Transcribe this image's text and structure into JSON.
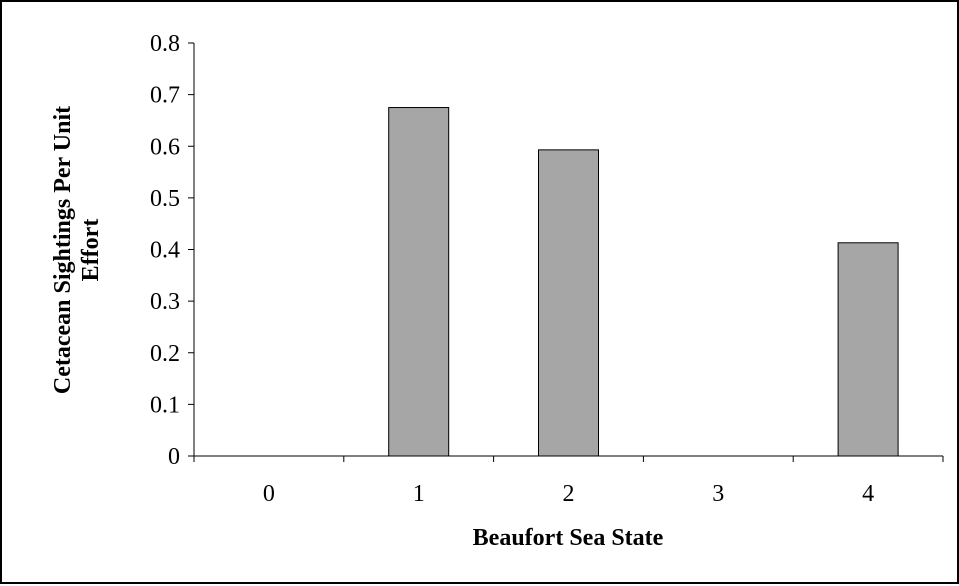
{
  "chart_data": {
    "type": "bar",
    "categories": [
      "0",
      "1",
      "2",
      "3",
      "4"
    ],
    "values": [
      0,
      0.675,
      0.593,
      0,
      0.413
    ],
    "xlabel": "Beaufort Sea State",
    "ylabel_lines": [
      "Cetacean Sightings Per Unit",
      "Effort"
    ],
    "ylim": [
      0,
      0.8
    ],
    "yticks": [
      "0",
      "0.1",
      "0.2",
      "0.3",
      "0.4",
      "0.5",
      "0.6",
      "0.7",
      "0.8"
    ],
    "grid": false,
    "legend": "none",
    "colors": {
      "bar_fill": "#a6a6a6",
      "bar_stroke": "#000000",
      "axis": "#000000"
    }
  }
}
